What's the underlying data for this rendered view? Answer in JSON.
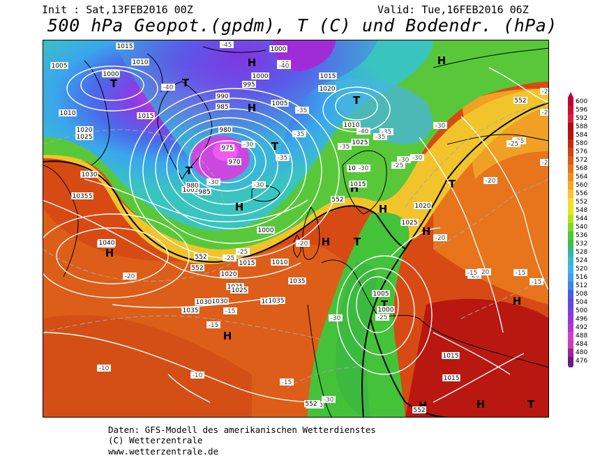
{
  "header": {
    "init": "Init : Sat,13FEB2016 00Z",
    "valid": "Valid: Tue,16FEB2016 06Z",
    "title": "500 hPa Geopot.(gpdm), T (C) und Bodendr. (hPa)"
  },
  "scale": {
    "values": [
      "600",
      "596",
      "592",
      "588",
      "584",
      "580",
      "576",
      "572",
      "568",
      "564",
      "560",
      "556",
      "552",
      "548",
      "544",
      "540",
      "536",
      "532",
      "528",
      "524",
      "520",
      "516",
      "512",
      "508",
      "504",
      "500",
      "496",
      "492",
      "488",
      "484",
      "480",
      "476"
    ],
    "colors": [
      "#c0003a",
      "#cc0f38",
      "#d81f35",
      "#b40a16",
      "#b8140e",
      "#c32b10",
      "#cf4212",
      "#dc5c16",
      "#e6761a",
      "#ed9020",
      "#f2aa28",
      "#f6c530",
      "#f6dd2c",
      "#e0eb1a",
      "#b3e41c",
      "#7fd82a",
      "#4ccc33",
      "#3cbc50",
      "#38b4a6",
      "#37b8d2",
      "#42b3ec",
      "#3fa1ee",
      "#3a85ea",
      "#4060e8",
      "#5c4ae4",
      "#7c3ee0",
      "#9a35dc",
      "#b532d6",
      "#d040d6",
      "#d03cb6",
      "#a0209e",
      "#6c1a7e"
    ]
  },
  "pressure_centers": [
    {
      "label": "H"
    },
    {
      "label": "T"
    },
    {
      "label": "T"
    },
    {
      "label": "H"
    },
    {
      "label": "H"
    },
    {
      "label": "T"
    },
    {
      "label": "T"
    },
    {
      "label": "T"
    },
    {
      "label": "H"
    },
    {
      "label": "T"
    },
    {
      "label": "H"
    },
    {
      "label": "H"
    },
    {
      "label": "H"
    },
    {
      "label": "H"
    },
    {
      "label": "T"
    },
    {
      "label": "H"
    },
    {
      "label": "H"
    },
    {
      "label": "T"
    },
    {
      "label": "H"
    },
    {
      "label": "T"
    },
    {
      "label": "H"
    },
    {
      "label": "H"
    }
  ],
  "isobar_labels": [
    "1015",
    "1010",
    "1005",
    "1000",
    "1000",
    "1000",
    "995",
    "990",
    "985",
    "980",
    "975",
    "970",
    "1005",
    "1010",
    "1015",
    "1020",
    "1025",
    "1030",
    "1035",
    "1040",
    "1035",
    "1030",
    "1025",
    "1020",
    "1015",
    "1010",
    "1005",
    "1000",
    "1035",
    "1030",
    "1025",
    "1015",
    "1030",
    "1025",
    "1020",
    "1015",
    "1010",
    "1005",
    "1000",
    "985",
    "980",
    "1035",
    "1030",
    "1040",
    "1035",
    "1030",
    "1015",
    "1015",
    "1020",
    "1025",
    "1030"
  ],
  "temperature_labels": [
    "-45",
    "-40",
    "-40",
    "-40",
    "-35",
    "-35",
    "-30",
    "-35",
    "-30",
    "-30",
    "-30",
    "-25",
    "-30",
    "-35",
    "-40",
    "-35",
    "-30",
    "-35",
    "-30",
    "-25",
    "-25",
    "-20",
    "-20",
    "-20",
    "-15",
    "-15",
    "-10",
    "-10",
    "-15",
    "-20",
    "-25",
    "-25",
    "-30",
    "-25",
    "-20",
    "-20",
    "-15",
    "-15",
    "-15",
    "-30",
    "-30",
    "-25",
    "-20",
    "-20"
  ],
  "contour_labels": [
    "552",
    "552",
    "552",
    "552",
    "552",
    "552"
  ],
  "footer": {
    "line1": "Daten: GFS-Modell des amerikanischen Wetterdienstes",
    "line2": "(C) Wetterzentrale",
    "line3": "www.wetterzentrale.de"
  }
}
